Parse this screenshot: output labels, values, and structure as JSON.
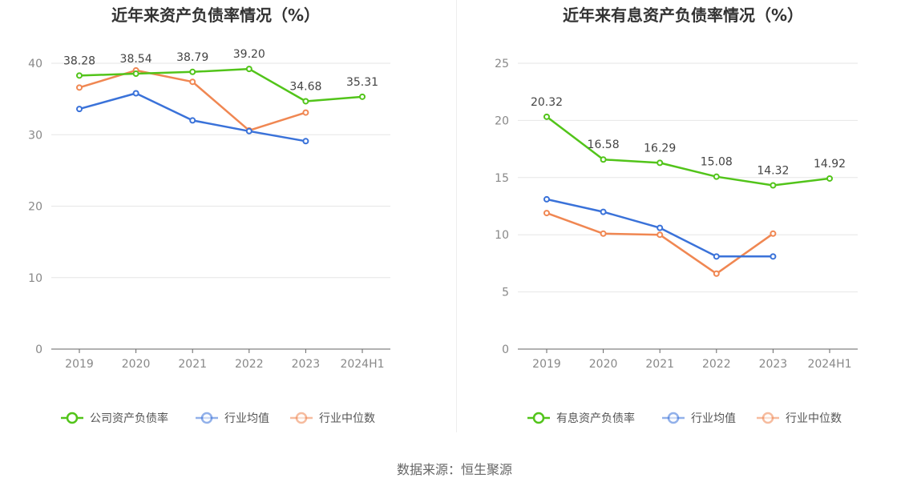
{
  "source": "数据来源：恒生聚源",
  "chart_data": [
    {
      "type": "line",
      "title": "近年来资产负债率情况（%）",
      "categories": [
        "2019",
        "2020",
        "2021",
        "2022",
        "2023",
        "2024H1"
      ],
      "ylim": [
        0,
        40
      ],
      "yticks": [
        0,
        10,
        20,
        30,
        40
      ],
      "grid": true,
      "legend_position": "bottom",
      "series": [
        {
          "name": "公司资产负债率",
          "color": "#52c41a",
          "values": [
            38.28,
            38.54,
            38.79,
            39.2,
            34.68,
            35.31
          ],
          "labels": [
            "38.28",
            "38.54",
            "38.79",
            "39.20",
            "34.68",
            "35.31"
          ]
        },
        {
          "name": "行业均值",
          "color": "#3a72d9",
          "values": [
            33.6,
            35.8,
            32.0,
            30.5,
            29.1,
            null
          ]
        },
        {
          "name": "行业中位数",
          "color": "#f08752",
          "values": [
            36.6,
            39.0,
            37.4,
            30.6,
            33.1,
            null
          ]
        }
      ]
    },
    {
      "type": "line",
      "title": "近年来有息资产负债率情况（%）",
      "categories": [
        "2019",
        "2020",
        "2021",
        "2022",
        "2023",
        "2024H1"
      ],
      "ylim": [
        0,
        25
      ],
      "yticks": [
        0,
        5,
        10,
        15,
        20,
        25
      ],
      "grid": true,
      "legend_position": "bottom",
      "series": [
        {
          "name": "有息资产负债率",
          "color": "#52c41a",
          "values": [
            20.32,
            16.58,
            16.29,
            15.08,
            14.32,
            14.92
          ],
          "labels": [
            "20.32",
            "16.58",
            "16.29",
            "15.08",
            "14.32",
            "14.92"
          ]
        },
        {
          "name": "行业均值",
          "color": "#3a72d9",
          "values": [
            13.1,
            12.0,
            10.6,
            8.1,
            8.1,
            null
          ]
        },
        {
          "name": "行业中位数",
          "color": "#f08752",
          "values": [
            11.9,
            10.1,
            10.0,
            6.6,
            10.1,
            null
          ]
        }
      ]
    }
  ]
}
